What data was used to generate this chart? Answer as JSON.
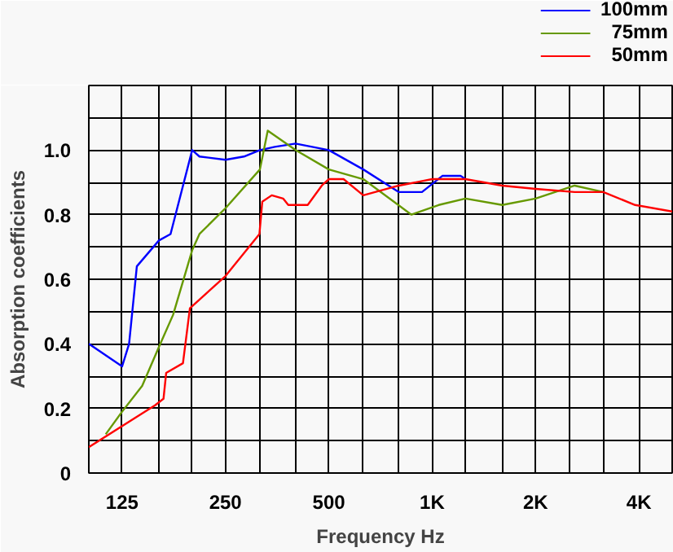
{
  "chart_data": {
    "type": "line",
    "xlabel": "Frequency Hz",
    "ylabel": "Absorption coefficients",
    "log": "x",
    "grid": true,
    "legend": "top right",
    "xlim": [
      100,
      5000
    ],
    "ylim": [
      0,
      1.2
    ],
    "xticks": [
      {
        "value": 100,
        "label": null
      },
      125,
      {
        "value": 160,
        "label": null
      },
      {
        "value": 200,
        "label": null
      },
      250,
      {
        "value": 315,
        "label": null
      },
      {
        "value": 400,
        "label": null
      },
      500,
      {
        "value": 630,
        "label": null
      },
      {
        "value": 800,
        "label": null
      },
      {
        "value": 1000,
        "label": "1K"
      },
      {
        "value": 1250,
        "label": null
      },
      {
        "value": 1600,
        "label": null
      },
      {
        "value": 2000,
        "label": "2K"
      },
      {
        "value": 2500,
        "label": null
      },
      {
        "value": 3150,
        "label": null
      },
      {
        "value": 4000,
        "label": "4K"
      },
      {
        "value": 5000,
        "label": null
      }
    ],
    "yticks": [
      0,
      {
        "value": 0.1,
        "label": null
      },
      0.2,
      {
        "value": 0.3,
        "label": null
      },
      0.4,
      {
        "value": 0.5,
        "label": null
      },
      0.6,
      {
        "value": 0.7,
        "label": null
      },
      0.8,
      {
        "value": 0.9,
        "label": null
      },
      {
        "value": 1.0,
        "label": "1.0"
      },
      {
        "value": 1.1,
        "label": null
      },
      {
        "value": 1.2,
        "label": null
      }
    ],
    "series": [
      {
        "name": "100mm",
        "color": "#0000ff",
        "x": [
          100,
          125,
          131,
          138,
          160,
          173,
          200,
          210,
          250,
          283,
          315,
          348,
          400,
          500,
          630,
          800,
          934,
          1070,
          1210,
          1250
        ],
        "values": [
          0.4,
          0.33,
          0.4,
          0.64,
          0.72,
          0.74,
          1.0,
          0.98,
          0.97,
          0.98,
          1.0,
          1.01,
          1.02,
          1.0,
          0.94,
          0.87,
          0.87,
          0.92,
          0.92,
          0.91
        ]
      },
      {
        "name": "75mm",
        "color": "#669900",
        "x": [
          112,
          125,
          143,
          160,
          176,
          200,
          210,
          250,
          315,
          332,
          400,
          500,
          630,
          870,
          1045,
          1250,
          1600,
          2000,
          2600,
          3150
        ],
        "values": [
          0.12,
          0.19,
          0.27,
          0.39,
          0.49,
          0.69,
          0.74,
          0.82,
          0.94,
          1.06,
          1.0,
          0.94,
          0.91,
          0.8,
          0.83,
          0.85,
          0.83,
          0.85,
          0.89,
          0.87
        ]
      },
      {
        "name": "50mm",
        "color": "#ff0000",
        "x": [
          100,
          156,
          165,
          168,
          188,
          197,
          250,
          314,
          320,
          341,
          368,
          381,
          434,
          477,
          500,
          552,
          630,
          800,
          1000,
          1250,
          1600,
          2000,
          2600,
          3150,
          3900,
          5000
        ],
        "values": [
          0.08,
          0.21,
          0.23,
          0.31,
          0.34,
          0.51,
          0.61,
          0.74,
          0.84,
          0.86,
          0.85,
          0.83,
          0.83,
          0.89,
          0.91,
          0.91,
          0.86,
          0.89,
          0.91,
          0.91,
          0.89,
          0.88,
          0.87,
          0.87,
          0.83,
          0.81
        ]
      }
    ]
  }
}
